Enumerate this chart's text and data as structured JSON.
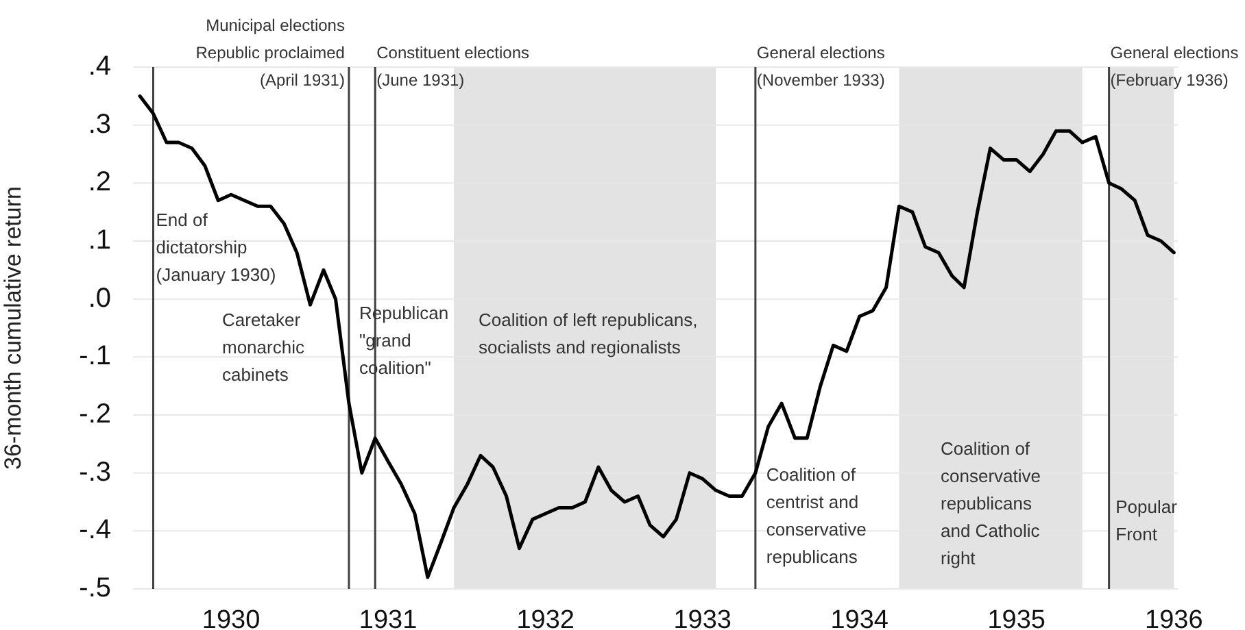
{
  "chart_data": {
    "type": "line",
    "ylabel": "36-month cumulative return",
    "x": [
      "1929-12",
      "1930-01",
      "1930-02",
      "1930-03",
      "1930-04",
      "1930-05",
      "1930-06",
      "1930-07",
      "1930-08",
      "1930-09",
      "1930-10",
      "1930-11",
      "1930-12",
      "1931-01",
      "1931-02",
      "1931-03",
      "1931-04",
      "1931-05",
      "1931-06",
      "1931-07",
      "1931-08",
      "1931-09",
      "1931-10",
      "1931-11",
      "1931-12",
      "1932-01",
      "1932-02",
      "1932-03",
      "1932-04",
      "1932-05",
      "1932-06",
      "1932-07",
      "1932-08",
      "1932-09",
      "1932-10",
      "1932-11",
      "1932-12",
      "1933-01",
      "1933-02",
      "1933-03",
      "1933-04",
      "1933-05",
      "1933-06",
      "1933-07",
      "1933-08",
      "1933-09",
      "1933-10",
      "1933-11",
      "1933-12",
      "1934-01",
      "1934-02",
      "1934-03",
      "1934-04",
      "1934-05",
      "1934-06",
      "1934-07",
      "1934-08",
      "1934-09",
      "1934-10",
      "1934-11",
      "1934-12",
      "1935-01",
      "1935-02",
      "1935-03",
      "1935-04",
      "1935-05",
      "1935-06",
      "1935-07",
      "1935-08",
      "1935-09",
      "1935-10",
      "1935-11",
      "1935-12",
      "1936-01",
      "1936-02",
      "1936-03",
      "1936-04",
      "1936-05",
      "1936-06",
      "1936-07"
    ],
    "values": [
      0.35,
      0.32,
      0.27,
      0.27,
      0.26,
      0.23,
      0.17,
      0.18,
      0.17,
      0.16,
      0.16,
      0.13,
      0.08,
      -0.01,
      0.05,
      0.0,
      -0.18,
      -0.3,
      -0.24,
      -0.28,
      -0.32,
      -0.37,
      -0.48,
      -0.42,
      -0.36,
      -0.32,
      -0.27,
      -0.29,
      -0.34,
      -0.43,
      -0.38,
      -0.37,
      -0.36,
      -0.36,
      -0.35,
      -0.29,
      -0.33,
      -0.35,
      -0.34,
      -0.39,
      -0.41,
      -0.38,
      -0.3,
      -0.31,
      -0.33,
      -0.34,
      -0.34,
      -0.3,
      -0.22,
      -0.18,
      -0.24,
      -0.24,
      -0.15,
      -0.08,
      -0.09,
      -0.03,
      -0.02,
      0.02,
      0.16,
      0.15,
      0.09,
      0.08,
      0.04,
      0.02,
      0.15,
      0.26,
      0.24,
      0.24,
      0.22,
      0.25,
      0.29,
      0.29,
      0.27,
      0.28,
      0.2,
      0.19,
      0.17,
      0.11,
      0.1,
      0.08
    ],
    "color": "#000000",
    "xlim": [
      "1929-11-15",
      "1936-07-10"
    ],
    "xticks": [
      {
        "value": "1930-07",
        "label": "1930"
      },
      {
        "value": "1931-07",
        "label": "1931"
      },
      {
        "value": "1932-07",
        "label": "1932"
      },
      {
        "value": "1933-07",
        "label": "1933"
      },
      {
        "value": "1934-07",
        "label": "1934"
      },
      {
        "value": "1935-07",
        "label": "1935"
      },
      {
        "value": "1936-07",
        "label": "1936"
      }
    ],
    "ylim": [
      -0.5,
      0.4
    ],
    "yticks": [
      {
        "value": 0.4,
        "label": ".4"
      },
      {
        "value": 0.3,
        "label": ".3"
      },
      {
        "value": 0.2,
        "label": ".2"
      },
      {
        "value": 0.1,
        "label": ".1"
      },
      {
        "value": 0,
        "label": ".0"
      },
      {
        "value": -0.1,
        "label": "-.1"
      },
      {
        "value": -0.2,
        "label": "-.2"
      },
      {
        "value": -0.3,
        "label": "-.3"
      },
      {
        "value": -0.4,
        "label": "-.4"
      },
      {
        "value": -0.5,
        "label": "-.5"
      }
    ],
    "grid": "y",
    "marker": "none",
    "line_style": "solid",
    "ref_lines": [
      {
        "axis": "x",
        "value": "1930-01",
        "color": "#404040"
      },
      {
        "axis": "x",
        "value": "1931-04",
        "label": "Municipal elections\nRepublic proclaimed\n(April 1931)",
        "color": "#404040"
      },
      {
        "axis": "x",
        "value": "1931-06",
        "label": "Constituent elections\n(June 1931)",
        "color": "#404040"
      },
      {
        "axis": "x",
        "value": "1933-11",
        "label": "General elections\n(November 1933)",
        "color": "#404040"
      },
      {
        "axis": "x",
        "value": "1936-02",
        "label": "General elections\n(February 1936)",
        "color": "#404040"
      }
    ],
    "bands": [
      {
        "axis": "x",
        "from": "1931-12",
        "to": "1933-08",
        "color": "#e3e3e3"
      },
      {
        "axis": "x",
        "from": "1934-10",
        "to": "1935-12",
        "color": "#e3e3e3"
      },
      {
        "axis": "x",
        "from": "1936-02",
        "to": "1936-07",
        "color": "#e3e3e3"
      }
    ],
    "annotations": [
      {
        "text": "End of\ndictatorship\n(January 1930)",
        "x": "1930-01",
        "y": 0.15
      },
      "Caretaker\nmonarchic\ncabinets",
      "Republican\n\"grand\ncoalition\"",
      "Coalition of left republicans,\nsocialists and regionalists",
      {
        "text": "Coalition of\ncentrist and\nconservative\nrepublicans",
        "x": "1933-11-20",
        "y": -0.29
      },
      "Coalition of\nconservative\nrepublicans\nand Catholic\nright",
      {
        "text": "Popular\nFront",
        "x": "1936-02-10",
        "y": -0.345
      }
    ]
  }
}
